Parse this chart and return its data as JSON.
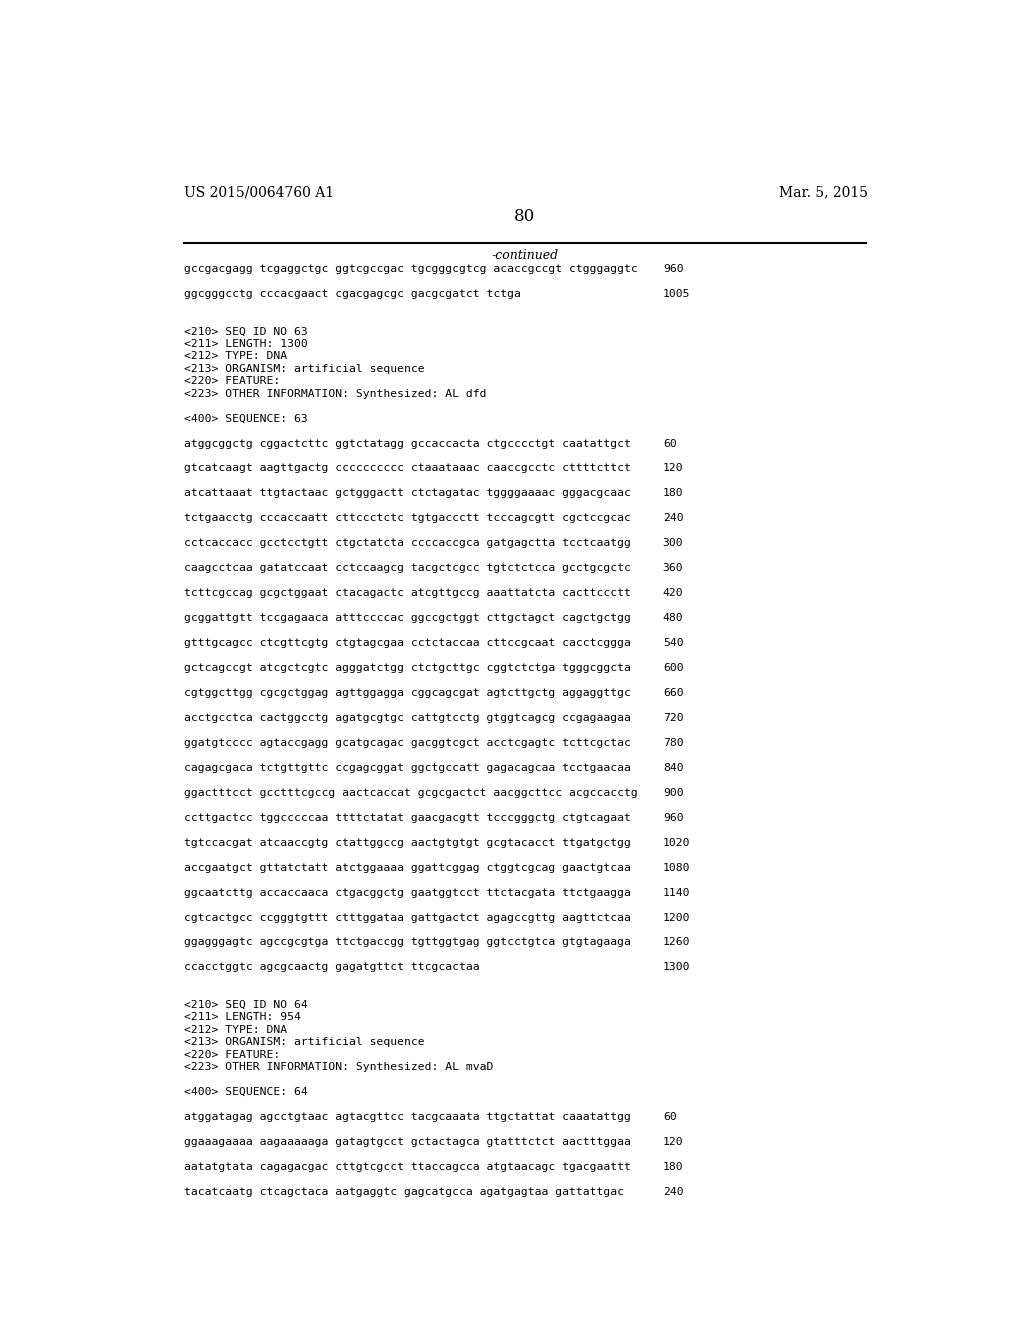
{
  "background_color": "#ffffff",
  "header_left": "US 2015/0064760 A1",
  "header_right": "Mar. 5, 2015",
  "page_number": "80",
  "continued_text": "-continued",
  "lines": [
    {
      "text": "gccgacgagg tcgaggctgc ggtcgccgac tgcgggcgtcg acaccgccgt ctgggaggtc",
      "num": "960",
      "type": "seq"
    },
    {
      "text": "",
      "num": "",
      "type": "blank"
    },
    {
      "text": "ggcgggcctg cccacgaact cgacgagcgc gacgcgatct tctga",
      "num": "1005",
      "type": "seq"
    },
    {
      "text": "",
      "num": "",
      "type": "blank"
    },
    {
      "text": "",
      "num": "",
      "type": "blank"
    },
    {
      "text": "<210> SEQ ID NO 63",
      "num": "",
      "type": "meta"
    },
    {
      "text": "<211> LENGTH: 1300",
      "num": "",
      "type": "meta"
    },
    {
      "text": "<212> TYPE: DNA",
      "num": "",
      "type": "meta"
    },
    {
      "text": "<213> ORGANISM: artificial sequence",
      "num": "",
      "type": "meta"
    },
    {
      "text": "<220> FEATURE:",
      "num": "",
      "type": "meta"
    },
    {
      "text": "<223> OTHER INFORMATION: Synthesized: AL dfd",
      "num": "",
      "type": "meta"
    },
    {
      "text": "",
      "num": "",
      "type": "blank"
    },
    {
      "text": "<400> SEQUENCE: 63",
      "num": "",
      "type": "meta"
    },
    {
      "text": "",
      "num": "",
      "type": "blank"
    },
    {
      "text": "atggcggctg cggactcttc ggtctatagg gccaccacta ctgcccctgt caatattgct",
      "num": "60",
      "type": "seq"
    },
    {
      "text": "",
      "num": "",
      "type": "blank"
    },
    {
      "text": "gtcatcaagt aagttgactg cccccccccc ctaaataaac caaccgcctc cttttcttct",
      "num": "120",
      "type": "seq"
    },
    {
      "text": "",
      "num": "",
      "type": "blank"
    },
    {
      "text": "atcattaaat ttgtactaac gctgggactt ctctagatac tggggaaaac gggacgcaac",
      "num": "180",
      "type": "seq"
    },
    {
      "text": "",
      "num": "",
      "type": "blank"
    },
    {
      "text": "tctgaacctg cccaccaatt cttccctctc tgtgaccctt tcccagcgtt cgctccgcac",
      "num": "240",
      "type": "seq"
    },
    {
      "text": "",
      "num": "",
      "type": "blank"
    },
    {
      "text": "cctcaccacc gcctcctgtt ctgctatcta ccccaccgca gatgagctta tcctcaatgg",
      "num": "300",
      "type": "seq"
    },
    {
      "text": "",
      "num": "",
      "type": "blank"
    },
    {
      "text": "caagcctcaa gatatccaat cctccaagcg tacgctcgcc tgtctctcca gcctgcgctc",
      "num": "360",
      "type": "seq"
    },
    {
      "text": "",
      "num": "",
      "type": "blank"
    },
    {
      "text": "tcttcgccag gcgctggaat ctacagactc atcgttgccg aaattatcta cacttccctt",
      "num": "420",
      "type": "seq"
    },
    {
      "text": "",
      "num": "",
      "type": "blank"
    },
    {
      "text": "gcggattgtt tccgagaaca atttccccac ggccgctggt cttgctagct cagctgctgg",
      "num": "480",
      "type": "seq"
    },
    {
      "text": "",
      "num": "",
      "type": "blank"
    },
    {
      "text": "gtttgcagcc ctcgttcgtg ctgtagcgaa cctctaccaa cttccgcaat cacctcggga",
      "num": "540",
      "type": "seq"
    },
    {
      "text": "",
      "num": "",
      "type": "blank"
    },
    {
      "text": "gctcagccgt atcgctcgtc agggatctgg ctctgcttgc cggtctctga tgggcggcta",
      "num": "600",
      "type": "seq"
    },
    {
      "text": "",
      "num": "",
      "type": "blank"
    },
    {
      "text": "cgtggcttgg cgcgctggag agttggagga cggcagcgat agtcttgctg aggaggttgc",
      "num": "660",
      "type": "seq"
    },
    {
      "text": "",
      "num": "",
      "type": "blank"
    },
    {
      "text": "acctgcctca cactggcctg agatgcgtgc cattgtcctg gtggtcagcg ccgagaagaa",
      "num": "720",
      "type": "seq"
    },
    {
      "text": "",
      "num": "",
      "type": "blank"
    },
    {
      "text": "ggatgtcccc agtaccgagg gcatgcagac gacggtcgct acctcgagtc tcttcgctac",
      "num": "780",
      "type": "seq"
    },
    {
      "text": "",
      "num": "",
      "type": "blank"
    },
    {
      "text": "cagagcgaca tctgttgttc ccgagcggat ggctgccatt gagacagcaa tcctgaacaa",
      "num": "840",
      "type": "seq"
    },
    {
      "text": "",
      "num": "",
      "type": "blank"
    },
    {
      "text": "ggactttcct gcctttcgccg aactcaccat gcgcgactct aacggcttcc acgccacctg",
      "num": "900",
      "type": "seq"
    },
    {
      "text": "",
      "num": "",
      "type": "blank"
    },
    {
      "text": "ccttgactcc tggcccccaa ttttctatat gaacgacgtt tcccgggctg ctgtcagaat",
      "num": "960",
      "type": "seq"
    },
    {
      "text": "",
      "num": "",
      "type": "blank"
    },
    {
      "text": "tgtccacgat atcaaccgtg ctattggccg aactgtgtgt gcgtacacct ttgatgctgg",
      "num": "1020",
      "type": "seq"
    },
    {
      "text": "",
      "num": "",
      "type": "blank"
    },
    {
      "text": "accgaatgct gttatctatt atctggaaaa ggattcggag ctggtcgcag gaactgtcaa",
      "num": "1080",
      "type": "seq"
    },
    {
      "text": "",
      "num": "",
      "type": "blank"
    },
    {
      "text": "ggcaatcttg accaccaaca ctgacggctg gaatggtcct ttctacgata ttctgaagga",
      "num": "1140",
      "type": "seq"
    },
    {
      "text": "",
      "num": "",
      "type": "blank"
    },
    {
      "text": "cgtcactgcc ccgggtgttt ctttggataa gattgactct agagccgttg aagttctcaa",
      "num": "1200",
      "type": "seq"
    },
    {
      "text": "",
      "num": "",
      "type": "blank"
    },
    {
      "text": "ggagggagtc agccgcgtga ttctgaccgg tgttggtgag ggtcctgtca gtgtagaaga",
      "num": "1260",
      "type": "seq"
    },
    {
      "text": "",
      "num": "",
      "type": "blank"
    },
    {
      "text": "ccacctggtc agcgcaactg gagatgttct ttcgcactaa",
      "num": "1300",
      "type": "seq"
    },
    {
      "text": "",
      "num": "",
      "type": "blank"
    },
    {
      "text": "",
      "num": "",
      "type": "blank"
    },
    {
      "text": "<210> SEQ ID NO 64",
      "num": "",
      "type": "meta"
    },
    {
      "text": "<211> LENGTH: 954",
      "num": "",
      "type": "meta"
    },
    {
      "text": "<212> TYPE: DNA",
      "num": "",
      "type": "meta"
    },
    {
      "text": "<213> ORGANISM: artificial sequence",
      "num": "",
      "type": "meta"
    },
    {
      "text": "<220> FEATURE:",
      "num": "",
      "type": "meta"
    },
    {
      "text": "<223> OTHER INFORMATION: Synthesized: AL mvaD",
      "num": "",
      "type": "meta"
    },
    {
      "text": "",
      "num": "",
      "type": "blank"
    },
    {
      "text": "<400> SEQUENCE: 64",
      "num": "",
      "type": "meta"
    },
    {
      "text": "",
      "num": "",
      "type": "blank"
    },
    {
      "text": "atggatagag agcctgtaac agtacgttcc tacgcaaata ttgctattat caaatattgg",
      "num": "60",
      "type": "seq"
    },
    {
      "text": "",
      "num": "",
      "type": "blank"
    },
    {
      "text": "ggaaagaaaa aagaaaaaga gatagtgcct gctactagca gtatttctct aactttggaa",
      "num": "120",
      "type": "seq"
    },
    {
      "text": "",
      "num": "",
      "type": "blank"
    },
    {
      "text": "aatatgtata cagagacgac cttgtcgcct ttaccagcca atgtaacagc tgacgaattt",
      "num": "180",
      "type": "seq"
    },
    {
      "text": "",
      "num": "",
      "type": "blank"
    },
    {
      "text": "tacatcaatg ctcagctaca aatgaggtc gagcatgcca agatgagtaa gattattgac",
      "num": "240",
      "type": "seq"
    }
  ]
}
